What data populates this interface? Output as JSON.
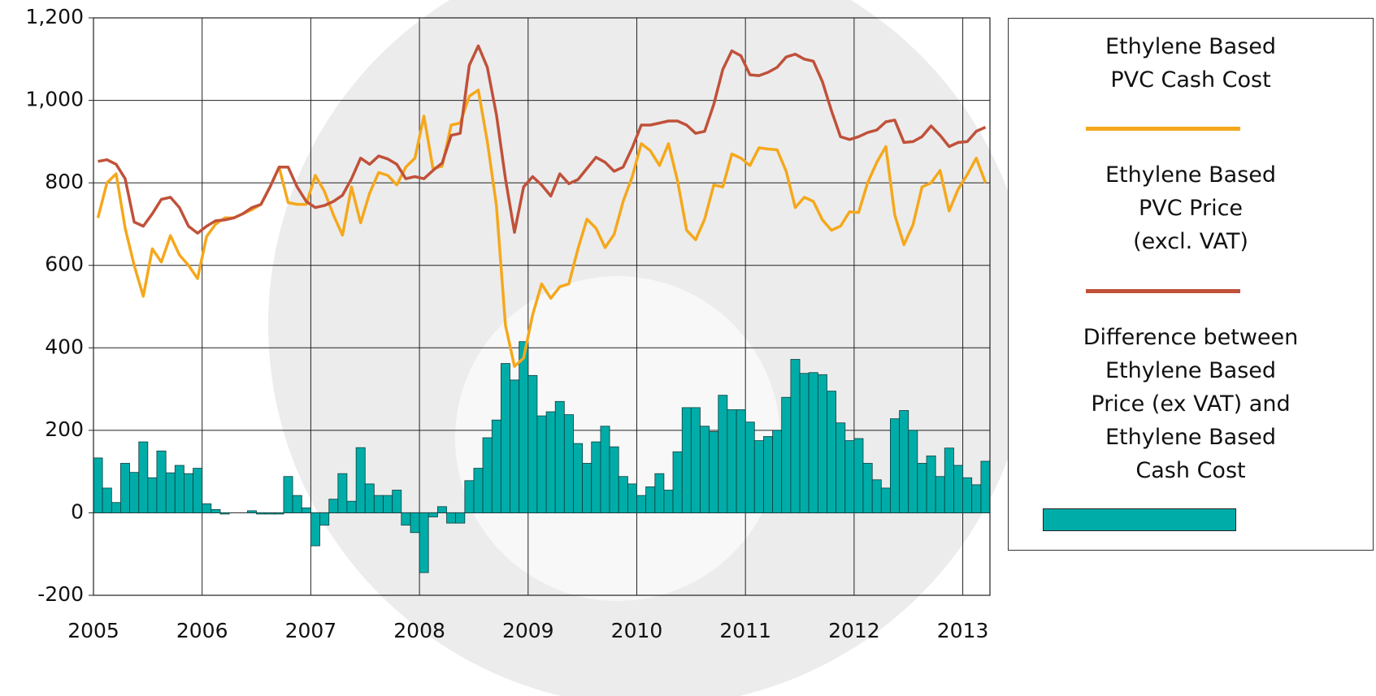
{
  "chart_data": {
    "type": "combo",
    "x": [
      2005,
      2005.083,
      2005.167,
      2005.25,
      2005.333,
      2005.417,
      2005.5,
      2005.583,
      2005.667,
      2005.75,
      2005.833,
      2005.917,
      2006,
      2006.083,
      2006.167,
      2006.25,
      2006.333,
      2006.417,
      2006.5,
      2006.583,
      2006.667,
      2006.75,
      2006.833,
      2006.917,
      2007,
      2007.083,
      2007.167,
      2007.25,
      2007.333,
      2007.417,
      2007.5,
      2007.583,
      2007.667,
      2007.75,
      2007.833,
      2007.917,
      2008,
      2008.083,
      2008.167,
      2008.25,
      2008.333,
      2008.417,
      2008.5,
      2008.583,
      2008.667,
      2008.75,
      2008.833,
      2008.917,
      2009,
      2009.083,
      2009.167,
      2009.25,
      2009.333,
      2009.417,
      2009.5,
      2009.583,
      2009.667,
      2009.75,
      2009.833,
      2009.917,
      2010,
      2010.083,
      2010.167,
      2010.25,
      2010.333,
      2010.417,
      2010.5,
      2010.583,
      2010.667,
      2010.75,
      2010.833,
      2010.917,
      2011,
      2011.083,
      2011.167,
      2011.25,
      2011.333,
      2011.417,
      2011.5,
      2011.583,
      2011.667,
      2011.75,
      2011.833,
      2011.917,
      2012,
      2012.083,
      2012.167,
      2012.25,
      2012.333,
      2012.417,
      2012.5,
      2012.583,
      2012.667,
      2012.75,
      2012.833,
      2012.917,
      2013,
      2013.083,
      2013.167
    ],
    "series": [
      {
        "name": "Ethylene Based\nPVC Cash Cost",
        "type": "line",
        "color": "#f5a81c",
        "values": [
          715,
          800,
          822,
          690,
          600,
          525,
          640,
          608,
          672,
          625,
          600,
          568,
          670,
          700,
          715,
          715,
          725,
          735,
          748,
          790,
          838,
          752,
          748,
          748,
          818,
          780,
          722,
          673,
          790,
          703,
          775,
          825,
          818,
          795,
          838,
          860,
          962,
          835,
          840,
          940,
          945,
          1010,
          1025,
          900,
          745,
          455,
          355,
          375,
          480,
          555,
          520,
          548,
          555,
          640,
          712,
          690,
          643,
          675,
          755,
          815,
          895,
          878,
          842,
          895,
          805,
          685,
          662,
          712,
          795,
          790,
          870,
          860,
          842,
          885,
          882,
          880,
          828,
          740,
          765,
          755,
          710,
          685,
          695,
          730,
          728,
          800,
          850,
          888,
          722,
          650,
          698,
          790,
          800,
          830,
          732,
          785,
          820,
          860,
          800
        ]
      },
      {
        "name": "Ethylene Based\nPVC Price\n(excl. VAT)",
        "type": "line",
        "color": "#c0513a",
        "values": [
          852,
          856,
          845,
          810,
          705,
          695,
          725,
          760,
          765,
          740,
          695,
          678,
          695,
          708,
          710,
          715,
          725,
          740,
          748,
          790,
          838,
          838,
          790,
          755,
          740,
          745,
          755,
          770,
          810,
          860,
          845,
          865,
          858,
          845,
          810,
          815,
          810,
          830,
          848,
          915,
          920,
          1085,
          1132,
          1080,
          965,
          810,
          680,
          790,
          815,
          795,
          768,
          822,
          798,
          808,
          835,
          862,
          850,
          828,
          838,
          885,
          940,
          940,
          945,
          950,
          950,
          940,
          920,
          925,
          990,
          1075,
          1120,
          1108,
          1062,
          1060,
          1068,
          1080,
          1105,
          1112,
          1100,
          1095,
          1045,
          975,
          912,
          905,
          912,
          922,
          928,
          948,
          952,
          898,
          900,
          912,
          938,
          915,
          888,
          898,
          900,
          925,
          935
        ]
      },
      {
        "name": "Difference between\nEthylene Based\nPrice (ex VAT) and\nEthylene Based\nCash Cost",
        "type": "bar",
        "color": "#00aca8",
        "values": [
          133,
          60,
          25,
          120,
          98,
          172,
          85,
          150,
          97,
          115,
          95,
          108,
          22,
          8,
          -3,
          0,
          0,
          5,
          -3,
          -3,
          -3,
          88,
          42,
          12,
          -80,
          -30,
          33,
          95,
          28,
          158,
          70,
          42,
          42,
          55,
          -30,
          -48,
          -145,
          -10,
          15,
          -25,
          -25,
          78,
          108,
          182,
          225,
          362,
          322,
          415,
          333,
          235,
          245,
          270,
          238,
          168,
          120,
          172,
          210,
          160,
          88,
          70,
          42,
          63,
          95,
          55,
          148,
          255,
          255,
          210,
          197,
          285,
          250,
          250,
          220,
          175,
          185,
          200,
          280,
          372,
          338,
          340,
          335,
          295,
          218,
          175,
          180,
          120,
          80,
          60,
          228,
          248,
          200,
          120,
          138,
          88,
          157,
          115,
          85,
          68,
          125
        ]
      }
    ],
    "xlim": [
      2005,
      2013.25
    ],
    "xticks": [
      2005,
      2006,
      2007,
      2008,
      2009,
      2010,
      2011,
      2012,
      2013
    ],
    "ylim": [
      -200,
      1200
    ],
    "yticks": [
      -200,
      0,
      200,
      400,
      600,
      {
        "value": 800,
        "label": "800"
      },
      {
        "value": 1000,
        "label": "1,000"
      },
      {
        "value": 1200,
        "label": "1,200"
      }
    ],
    "grid": true,
    "legend": "right"
  }
}
